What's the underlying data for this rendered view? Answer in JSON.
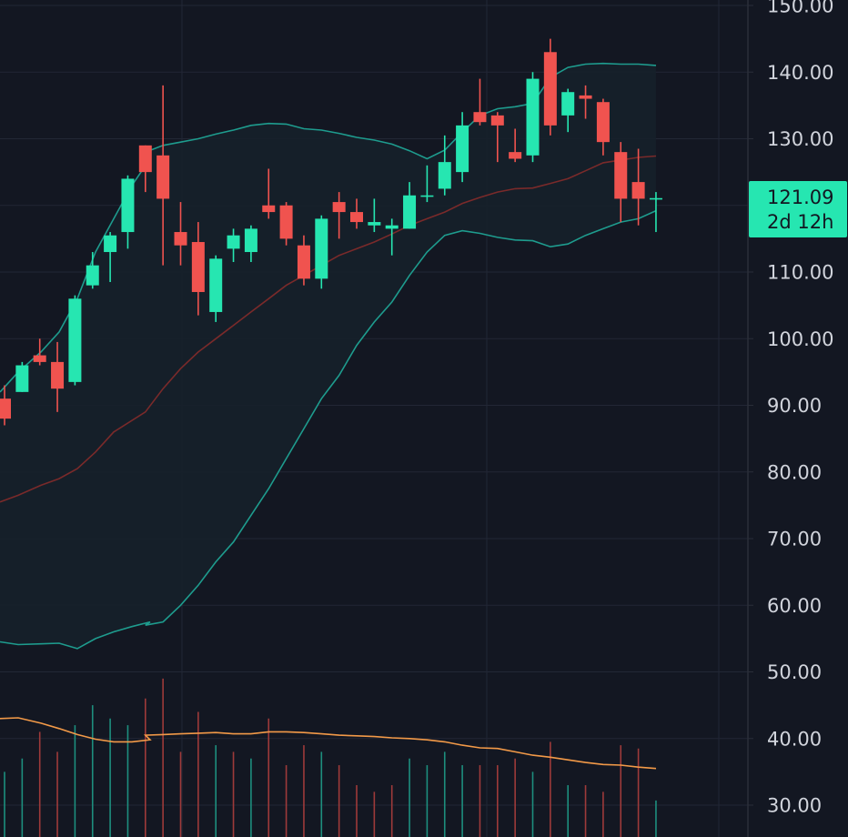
{
  "colors": {
    "background": "#131722",
    "grid": "#222735",
    "axis_border": "#2a2e39",
    "axis_text": "#d1d4dc",
    "up": "#26e6b1",
    "down": "#f0534f",
    "band": "#1e9c8e",
    "basis": "#7a2a2a",
    "band_fill": "#16202a",
    "volume_ma": "#f39a48",
    "volume_up": "#1d8f7e",
    "volume_down": "#9e3a3a"
  },
  "price_tag": {
    "price": "121.09",
    "countdown": "2d 12h",
    "value": 121.09
  },
  "chart_data": {
    "type": "candlestick",
    "title": "",
    "xlabel": "",
    "ylabel": "",
    "ylim": [
      27,
      151
    ],
    "grid": true,
    "y_ticks": [
      {
        "value": 150,
        "label": "150.00"
      },
      {
        "value": 140,
        "label": "140.00"
      },
      {
        "value": 130,
        "label": "130.00"
      },
      {
        "value": 110,
        "label": "110.00"
      },
      {
        "value": 100,
        "label": "100.00"
      },
      {
        "value": 90,
        "label": "90.00"
      },
      {
        "value": 80,
        "label": "80.00"
      },
      {
        "value": 70,
        "label": "70.00"
      },
      {
        "value": 60,
        "label": "60.00"
      },
      {
        "value": 50,
        "label": "50.00"
      },
      {
        "value": 40,
        "label": "40.00"
      },
      {
        "value": 30,
        "label": "30.00"
      }
    ],
    "candles": [
      [
        91,
        93,
        87,
        88
      ],
      [
        92,
        96.5,
        92,
        96
      ],
      [
        97.5,
        100,
        96,
        96.5
      ],
      [
        96.5,
        99.5,
        89,
        92.5
      ],
      [
        93.5,
        106.5,
        93,
        106
      ],
      [
        108,
        113,
        107.5,
        111
      ],
      [
        113,
        116,
        108.5,
        115.5
      ],
      [
        116,
        124.5,
        113.5,
        124
      ],
      [
        129,
        129,
        122,
        125
      ],
      [
        127.5,
        138,
        111,
        121
      ],
      [
        116,
        120.5,
        111,
        114
      ],
      [
        114.5,
        117.5,
        103.5,
        107
      ],
      [
        104,
        112.5,
        102.5,
        112
      ],
      [
        113.5,
        116.5,
        111.5,
        115.5
      ],
      [
        113,
        117,
        111.5,
        116.5
      ],
      [
        120,
        125.5,
        118,
        119
      ],
      [
        120,
        120.5,
        114,
        115
      ],
      [
        114,
        115.5,
        108,
        109
      ],
      [
        109,
        118.5,
        107.5,
        118
      ],
      [
        120.5,
        122,
        115,
        119
      ],
      [
        119,
        121,
        116.5,
        117.5
      ],
      [
        117,
        121,
        116,
        117.5
      ],
      [
        116.5,
        118,
        112.5,
        117
      ],
      [
        116.5,
        123.5,
        116.5,
        121.5
      ],
      [
        121.5,
        126,
        120.5,
        121.5
      ],
      [
        122.5,
        130.5,
        121.5,
        126.5
      ],
      [
        125,
        134,
        123.5,
        132
      ],
      [
        134,
        139,
        132,
        132.5
      ],
      [
        133.5,
        134,
        126.5,
        132
      ],
      [
        128,
        131.5,
        126.5,
        127
      ],
      [
        127.5,
        140,
        126.5,
        139
      ],
      [
        143,
        145,
        130.5,
        132
      ],
      [
        133.5,
        137.5,
        131,
        137
      ],
      [
        136.5,
        138,
        133,
        136
      ],
      [
        135.5,
        136,
        127.5,
        129.5
      ],
      [
        128,
        129.5,
        117.5,
        121
      ],
      [
        123.5,
        128.5,
        117,
        121
      ],
      [
        121.09,
        122,
        116,
        121.09
      ]
    ],
    "upper_band": [
      null,
      null,
      null,
      null,
      null,
      null,
      null,
      null,
      128,
      129,
      129.5,
      130,
      130.7,
      131.3,
      132,
      132.3,
      132.2,
      131.5,
      131.3,
      130.8,
      130.2,
      129.8,
      129.2,
      128.2,
      127,
      128.3,
      131,
      133.5,
      134.5,
      134.8,
      135.3,
      139.2,
      140.7,
      141.2,
      141.3,
      141.2,
      141.2,
      141
    ],
    "basis": [
      null,
      null,
      null,
      null,
      null,
      null,
      null,
      null,
      89,
      92.5,
      95.5,
      98,
      100,
      102,
      104,
      106,
      108,
      109.5,
      111,
      112.5,
      113.5,
      114.5,
      115.7,
      117,
      118,
      119,
      120.3,
      121.2,
      122,
      122.5,
      122.6,
      123.3,
      124,
      125.2,
      126.4,
      126.8,
      127.2,
      127.4
    ],
    "lower_band": [
      null,
      null,
      null,
      null,
      null,
      null,
      null,
      null,
      57,
      57.5,
      60,
      63,
      66.5,
      69.5,
      73.5,
      77.5,
      82,
      86.5,
      91,
      94.5,
      99,
      102.5,
      105.5,
      109.5,
      113,
      115.5,
      116.2,
      115.8,
      115.2,
      114.8,
      114.7,
      113.8,
      114.2,
      115.5,
      116.5,
      117.5,
      118,
      119.2
    ],
    "lower_band_prefix": [
      [
        0,
        54.5
      ],
      [
        20,
        54.1
      ],
      [
        45,
        54.2
      ],
      [
        65,
        54.3
      ],
      [
        85,
        53.5
      ],
      [
        105,
        55
      ],
      [
        125,
        56
      ],
      [
        145,
        56.8
      ],
      [
        165,
        57.5
      ]
    ],
    "basis_prefix": [
      [
        0,
        75.5
      ],
      [
        20,
        76.5
      ],
      [
        45,
        78
      ],
      [
        65,
        79
      ],
      [
        85,
        80.5
      ],
      [
        105,
        83
      ],
      [
        125,
        86
      ]
    ],
    "upper_band_prefix": [
      [
        0,
        92
      ],
      [
        20,
        95
      ],
      [
        45,
        98
      ],
      [
        65,
        101
      ],
      [
        85,
        106
      ],
      [
        105,
        113
      ],
      [
        125,
        118
      ],
      [
        145,
        123
      ],
      [
        165,
        127
      ]
    ],
    "volume": [
      {
        "value": 35,
        "dir": "up"
      },
      {
        "value": 37,
        "dir": "up"
      },
      {
        "value": 41,
        "dir": "down"
      },
      {
        "value": 38,
        "dir": "down"
      },
      {
        "value": 42,
        "dir": "up"
      },
      {
        "value": 45,
        "dir": "up"
      },
      {
        "value": 43,
        "dir": "up"
      },
      {
        "value": 42,
        "dir": "up"
      },
      {
        "value": 46,
        "dir": "down"
      },
      {
        "value": 49,
        "dir": "down"
      },
      {
        "value": 38,
        "dir": "down"
      },
      {
        "value": 44,
        "dir": "down"
      },
      {
        "value": 39,
        "dir": "up"
      },
      {
        "value": 38,
        "dir": "down"
      },
      {
        "value": 37,
        "dir": "up"
      },
      {
        "value": 43,
        "dir": "down"
      },
      {
        "value": 36,
        "dir": "down"
      },
      {
        "value": 39,
        "dir": "down"
      },
      {
        "value": 38,
        "dir": "up"
      },
      {
        "value": 36,
        "dir": "down"
      },
      {
        "value": 33,
        "dir": "down"
      },
      {
        "value": 32,
        "dir": "down"
      },
      {
        "value": 33,
        "dir": "down"
      },
      {
        "value": 37,
        "dir": "up"
      },
      {
        "value": 36,
        "dir": "up"
      },
      {
        "value": 38,
        "dir": "up"
      },
      {
        "value": 36,
        "dir": "up"
      },
      {
        "value": 36,
        "dir": "down"
      },
      {
        "value": 36,
        "dir": "down"
      },
      {
        "value": 37,
        "dir": "down"
      },
      {
        "value": 35,
        "dir": "up"
      },
      {
        "value": 39.5,
        "dir": "down"
      },
      {
        "value": 33,
        "dir": "up"
      },
      {
        "value": 33,
        "dir": "down"
      },
      {
        "value": 32,
        "dir": "down"
      },
      {
        "value": 39,
        "dir": "down"
      },
      {
        "value": 38.5,
        "dir": "down"
      },
      {
        "value": 30.7,
        "dir": "up"
      }
    ],
    "volume_ma": [
      null,
      null,
      null,
      null,
      null,
      null,
      null,
      null,
      40.5,
      40.6,
      40.7,
      40.8,
      40.9,
      40.7,
      40.7,
      41,
      41,
      40.9,
      40.7,
      40.5,
      40.4,
      40.3,
      40.1,
      40,
      39.8,
      39.5,
      39,
      38.6,
      38.5,
      38,
      37.5,
      37.2,
      36.8,
      36.4,
      36.1,
      36,
      35.7,
      35.5
    ],
    "volume_ma_prefix": [
      [
        0,
        43
      ],
      [
        20,
        43.1
      ],
      [
        45,
        42.3
      ],
      [
        65,
        41.5
      ],
      [
        85,
        40.6
      ],
      [
        105,
        39.9
      ],
      [
        125,
        39.5
      ],
      [
        145,
        39.5
      ],
      [
        165,
        39.8
      ]
    ]
  }
}
